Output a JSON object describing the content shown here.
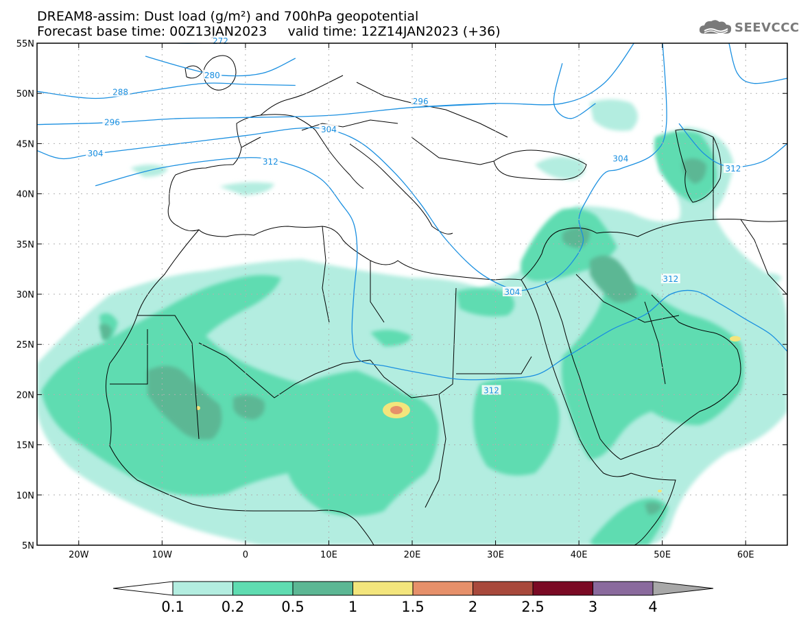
{
  "header": {
    "title_line1": "DREAM8-assim: Dust load (g/m²) and 700hPa geopotential",
    "title_line2": "Forecast base time: 00Z13JAN2023     valid time: 12Z14JAN2023 (+36)"
  },
  "logo": {
    "text": "SEEVCCC",
    "icon": "cloud-icon",
    "color": "#7a7a7a"
  },
  "map": {
    "lon_range": [
      -25,
      65
    ],
    "lat_range": [
      5,
      55
    ],
    "lon_ticks": [
      {
        "v": -20,
        "label": "20W"
      },
      {
        "v": -10,
        "label": "10W"
      },
      {
        "v": 0,
        "label": "0"
      },
      {
        "v": 10,
        "label": "10E"
      },
      {
        "v": 20,
        "label": "20E"
      },
      {
        "v": 30,
        "label": "30E"
      },
      {
        "v": 40,
        "label": "40E"
      },
      {
        "v": 50,
        "label": "50E"
      },
      {
        "v": 60,
        "label": "60E"
      }
    ],
    "lat_ticks": [
      {
        "v": 55,
        "label": "55N"
      },
      {
        "v": 50,
        "label": "50N"
      },
      {
        "v": 45,
        "label": "45N"
      },
      {
        "v": 40,
        "label": "40N"
      },
      {
        "v": 35,
        "label": "35N"
      },
      {
        "v": 30,
        "label": "30N"
      },
      {
        "v": 25,
        "label": "25N"
      },
      {
        "v": 20,
        "label": "20N"
      },
      {
        "v": 15,
        "label": "15N"
      },
      {
        "v": 10,
        "label": "10N"
      },
      {
        "v": 5,
        "label": "5N"
      }
    ],
    "contour_color": "#1a8fe0",
    "contours": [
      {
        "label": "272",
        "label_at": [
          -3,
          55.2
        ],
        "pts": [
          [
            -16,
            55.6
          ],
          [
            -8,
            55.0
          ],
          [
            0,
            55.2
          ],
          [
            5,
            55.6
          ]
        ]
      },
      {
        "label": "280",
        "label_at": [
          -4,
          51.8
        ],
        "pts": [
          [
            -12,
            53.7
          ],
          [
            -7,
            52.5
          ],
          [
            -3,
            51.8
          ],
          [
            2,
            52.0
          ],
          [
            6,
            53.5
          ]
        ]
      },
      {
        "label": "288",
        "label_at": [
          -15,
          50.1
        ],
        "pts": [
          [
            -25,
            50.2
          ],
          [
            -18,
            49.5
          ],
          [
            -12,
            50.2
          ],
          [
            -5,
            51.0
          ],
          [
            0,
            50.9
          ],
          [
            6,
            50.8
          ]
        ]
      },
      {
        "label": "296",
        "label_at": [
          -16,
          47.1
        ],
        "pts": [
          [
            -25,
            46.9
          ],
          [
            -16,
            47.1
          ],
          [
            -8,
            47.5
          ],
          [
            0,
            47.6
          ],
          [
            10,
            47.8
          ],
          [
            20,
            48.6
          ],
          [
            30,
            49.0
          ],
          [
            38,
            49.0
          ],
          [
            43,
            51
          ],
          [
            47,
            55.5
          ]
        ]
      },
      {
        "label": "296",
        "label_at": [
          21,
          49.2
        ],
        "pts": [
          [
            20,
            48.6
          ],
          [
            30,
            49.0
          ]
        ]
      },
      {
        "label": "304",
        "label_at": [
          -18,
          44.0
        ],
        "pts": [
          [
            -25,
            44.3
          ],
          [
            -22,
            43.5
          ],
          [
            -18,
            44.0
          ],
          [
            -10,
            44.8
          ],
          [
            0,
            45.8
          ],
          [
            6,
            46.5
          ],
          [
            10,
            46.4
          ],
          [
            14,
            45.0
          ],
          [
            18,
            42.0
          ],
          [
            21,
            39
          ],
          [
            24,
            35.5
          ],
          [
            28,
            32.2
          ],
          [
            32,
            30.5
          ],
          [
            34.5,
            30.6
          ],
          [
            37,
            31.5
          ],
          [
            39,
            33
          ],
          [
            40.5,
            35.2
          ],
          [
            40,
            37.5
          ],
          [
            41,
            39.5
          ],
          [
            43,
            42
          ],
          [
            45,
            42.5
          ],
          [
            49,
            44
          ],
          [
            50.5,
            47
          ],
          [
            50,
            55.5
          ]
        ]
      },
      {
        "label": "304",
        "label_at": [
          10,
          46.4
        ],
        "pts": []
      },
      {
        "label": "304",
        "label_at": [
          32,
          30.2
        ],
        "pts": []
      },
      {
        "label": "304",
        "label_at": [
          45,
          43.5
        ],
        "pts": []
      },
      {
        "label": "312",
        "label_at": [
          3,
          43.2
        ],
        "pts": [
          [
            -18,
            40.8
          ],
          [
            -10,
            42.6
          ],
          [
            0,
            43.6
          ],
          [
            5,
            43.0
          ],
          [
            9,
            41.5
          ],
          [
            11.5,
            39
          ],
          [
            13,
            37
          ],
          [
            13.4,
            34
          ],
          [
            13,
            30
          ],
          [
            12.8,
            26
          ],
          [
            13.6,
            23.5
          ],
          [
            17,
            22.8
          ],
          [
            22,
            22.0
          ],
          [
            26,
            21.5
          ],
          [
            31,
            21.6
          ],
          [
            35,
            22.0
          ],
          [
            38,
            23.5
          ],
          [
            40,
            24.5
          ],
          [
            44,
            26.5
          ],
          [
            48,
            28.0
          ],
          [
            51,
            30.0
          ],
          [
            54,
            30.3
          ],
          [
            57,
            29.0
          ],
          [
            60,
            27.5
          ],
          [
            63,
            26.0
          ],
          [
            65,
            24.3
          ]
        ]
      },
      {
        "label": "312",
        "label_at": [
          29.5,
          20.4
        ],
        "pts": []
      },
      {
        "label": "312",
        "label_at": [
          51,
          31.5
        ],
        "pts": []
      },
      {
        "label": "312",
        "label_at": [
          58.5,
          42.5
        ],
        "pts": [
          [
            52,
            47
          ],
          [
            55,
            44
          ],
          [
            58,
            42.7
          ],
          [
            62,
            43.2
          ],
          [
            65,
            45.0
          ]
        ]
      },
      {
        "label": "",
        "label_at": null,
        "pts": [
          [
            38,
            53
          ],
          [
            37,
            49
          ],
          [
            39,
            47.5
          ],
          [
            42,
            49
          ]
        ]
      },
      {
        "label": "",
        "label_at": null,
        "pts": [
          [
            58,
            55
          ],
          [
            59,
            52
          ],
          [
            61,
            51
          ],
          [
            65,
            51.5
          ]
        ]
      }
    ]
  },
  "colorbar": {
    "labels": [
      "0.1",
      "0.2",
      "0.5",
      "1",
      "1.5",
      "2",
      "2.5",
      "3",
      "4"
    ],
    "colors": [
      "#ffffff",
      "#b3ede0",
      "#5fdcb1",
      "#5cb794",
      "#f3e57c",
      "#e6906a",
      "#a8493c",
      "#7a0a24",
      "#8a6a9d",
      "#a8a8a8"
    ]
  }
}
